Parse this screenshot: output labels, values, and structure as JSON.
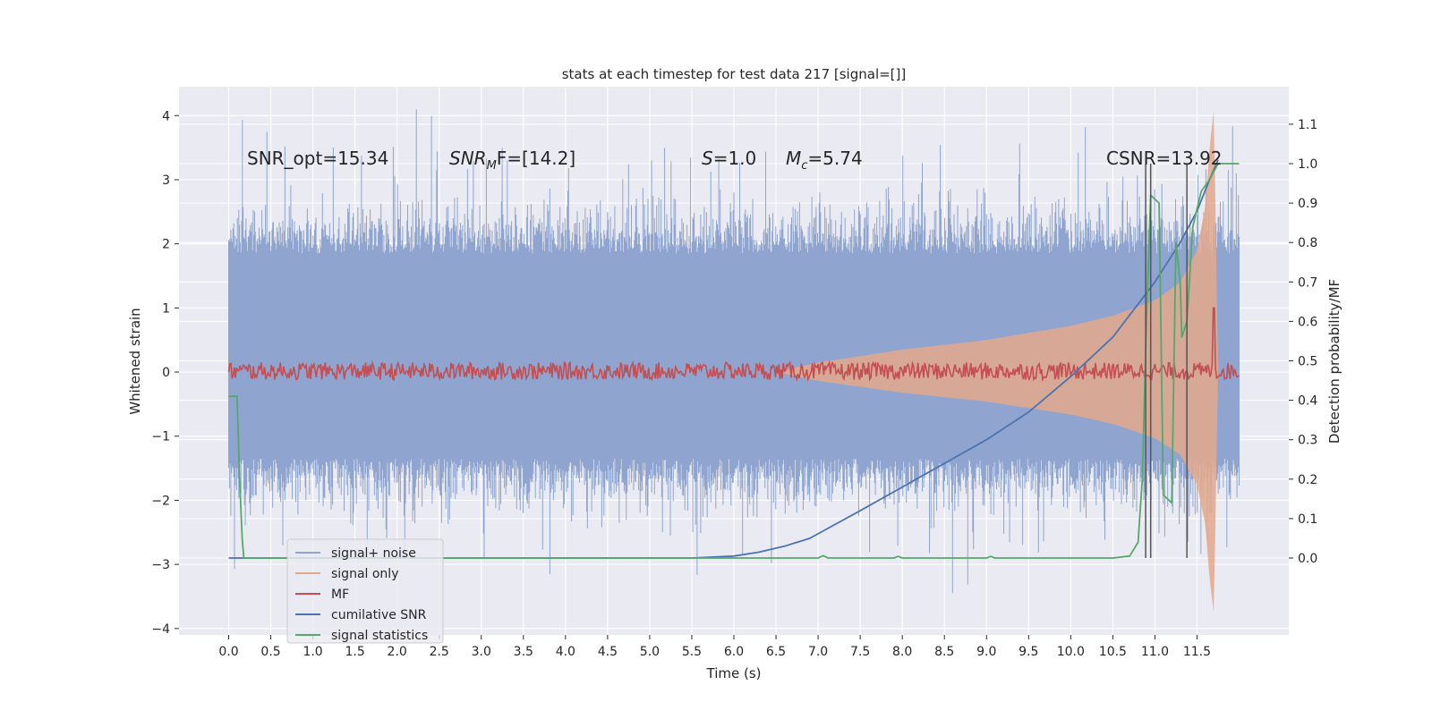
{
  "chart_data": {
    "type": "line",
    "title": "stats at each timestep for test data 217 [signal=[]]",
    "xlabel": "Time (s)",
    "ylabel_left": "Whitened strain",
    "ylabel_right": "Detection probability/MF",
    "xlim": [
      -0.59,
      12.59
    ],
    "ylim_left": [
      -4.1,
      4.45
    ],
    "ylim_right": [
      -0.195,
      1.195
    ],
    "x_ticks": [
      "0.0",
      "0.5",
      "1.0",
      "1.5",
      "2.0",
      "2.5",
      "3.0",
      "3.5",
      "4.0",
      "4.5",
      "5.0",
      "5.5",
      "6.0",
      "6.5",
      "7.0",
      "7.5",
      "8.0",
      "8.5",
      "9.0",
      "9.5",
      "10.0",
      "10.5",
      "11.0",
      "11.5"
    ],
    "y_ticks_left": [
      "−4",
      "−3",
      "−2",
      "−1",
      "0",
      "1",
      "2",
      "3",
      "4"
    ],
    "y_ticks_right": [
      "0.0",
      "0.1",
      "0.2",
      "0.3",
      "0.4",
      "0.5",
      "0.6",
      "0.7",
      "0.8",
      "0.9",
      "1.0",
      "1.1"
    ],
    "grid": true,
    "legend_placement": "lower-left",
    "annotations": {
      "snr_opt": "SNR_opt=15.34",
      "snr_mf_main": "SNR",
      "snr_mf_sub": "M",
      "snr_mf_rest": "F=[14.2]",
      "s_main": "S",
      "s_rest": "=1.0",
      "mc_main": "M",
      "mc_sub": "c",
      "mc_rest": "=5.74",
      "csnr": "CSNR=13.92"
    },
    "vertical_lines_x": [
      10.89,
      10.95,
      11.38
    ],
    "series": [
      {
        "name": "signal+ noise",
        "color": "#8fa5cf",
        "axis": "left",
        "x_range": [
          0.0,
          12.0
        ],
        "envelope_typical": [
          -1.5,
          2.2
        ],
        "envelope_extreme": [
          -3.7,
          4.1
        ]
      },
      {
        "name": "signal only",
        "color": "#e3a88b",
        "axis": "left",
        "x": [
          6.5,
          7.0,
          8.0,
          9.0,
          10.0,
          10.5,
          11.0,
          11.3,
          11.5,
          11.6,
          11.65,
          11.7,
          11.75
        ],
        "amplitude": [
          0.0,
          0.15,
          0.35,
          0.5,
          0.72,
          0.88,
          1.12,
          1.4,
          1.9,
          2.6,
          3.5,
          4.1,
          0.0
        ]
      },
      {
        "name": "MF",
        "color": "#c44e52",
        "axis": "left",
        "x_range": [
          0.0,
          12.0
        ],
        "band": [
          -0.12,
          0.15
        ],
        "spike_x": 11.7,
        "spike_y": 1.0
      },
      {
        "name": "cumilative SNR",
        "color": "#4c72b0",
        "axis": "right",
        "x": [
          0.0,
          5.5,
          6.0,
          6.3,
          6.6,
          6.9,
          7.2,
          7.5,
          8.0,
          8.5,
          9.0,
          9.5,
          10.0,
          10.5,
          11.0,
          11.3,
          11.5,
          11.65,
          11.75
        ],
        "y": [
          0.0,
          0.0,
          0.005,
          0.015,
          0.03,
          0.05,
          0.085,
          0.12,
          0.18,
          0.24,
          0.3,
          0.37,
          0.46,
          0.56,
          0.7,
          0.8,
          0.88,
          0.96,
          1.01
        ]
      },
      {
        "name": "signal statistics",
        "color": "#55a868",
        "axis": "right",
        "x": [
          0.0,
          0.05,
          0.08,
          0.1,
          0.13,
          0.16,
          0.18,
          0.2,
          0.25,
          7.0,
          7.06,
          7.12,
          7.3,
          7.9,
          7.95,
          8.0,
          9.0,
          9.05,
          9.1,
          10.5,
          10.7,
          10.8,
          10.85,
          10.9,
          10.95,
          11.05,
          11.1,
          11.2,
          11.25,
          11.3,
          11.32,
          11.38,
          11.45,
          11.55,
          11.65,
          11.75,
          11.8,
          12.0
        ],
        "y": [
          0.41,
          0.41,
          0.41,
          0.41,
          0.2,
          0.05,
          0.0,
          0.0,
          0.0,
          0.0,
          0.006,
          0.0,
          0.0,
          0.0,
          0.004,
          0.0,
          0.0,
          0.004,
          0.0,
          0.0,
          0.005,
          0.04,
          0.2,
          0.6,
          0.92,
          0.9,
          0.16,
          0.14,
          0.8,
          0.7,
          0.56,
          0.6,
          0.84,
          0.93,
          0.96,
          1.0,
          1.0,
          1.0
        ]
      }
    ]
  }
}
